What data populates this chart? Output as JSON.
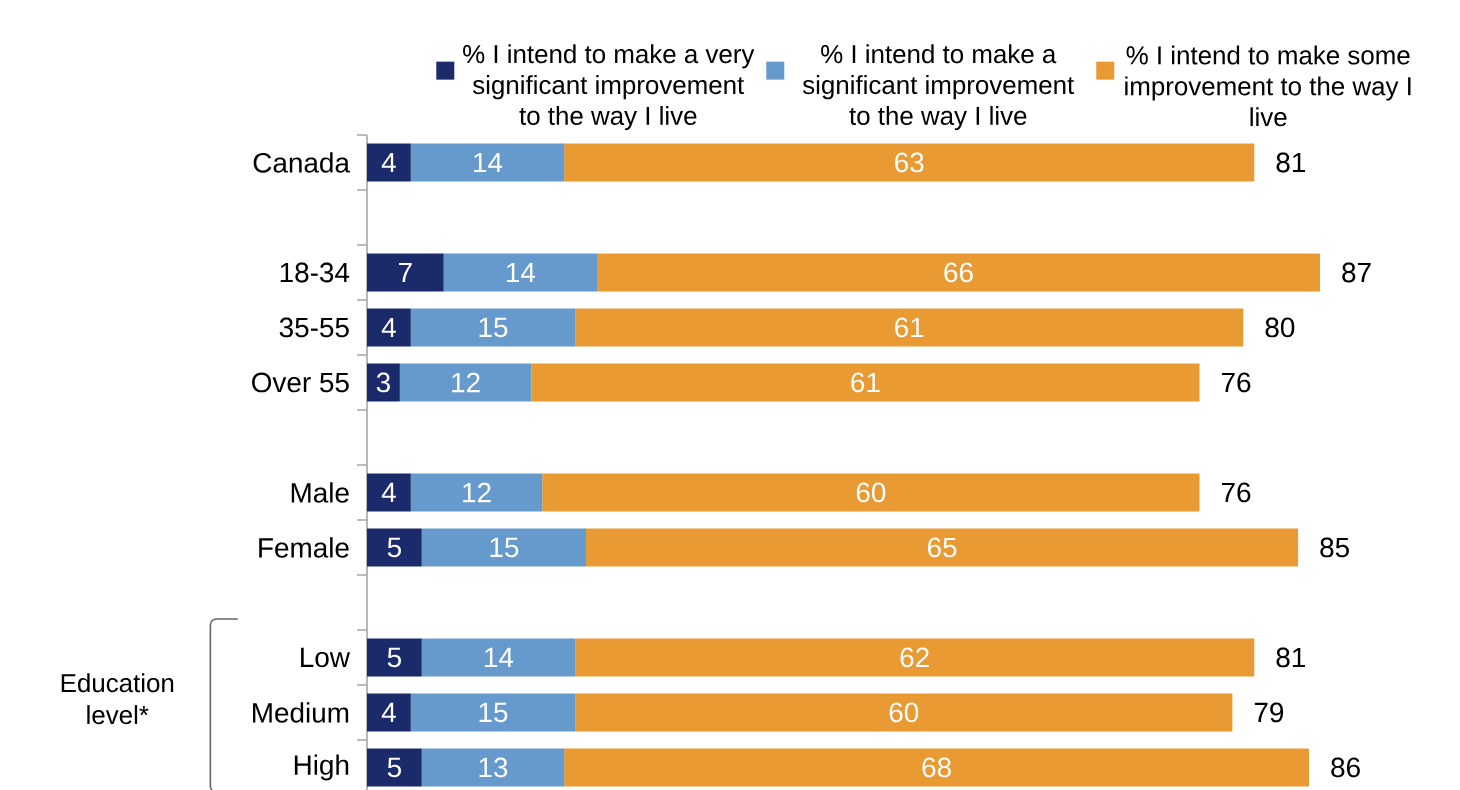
{
  "chart_data": {
    "type": "bar",
    "orientation": "horizontal",
    "stacked": true,
    "categories": [
      "Canada",
      null,
      "18-34",
      "35-55",
      "Over 55",
      null,
      "Male",
      "Female",
      null,
      "Low",
      "Medium",
      "High"
    ],
    "series": [
      {
        "name": "% I intend to make a very significant improvement to the way I live",
        "color": "#1b2a6b",
        "values": [
          4,
          null,
          7,
          4,
          3,
          null,
          4,
          5,
          null,
          5,
          4,
          5
        ]
      },
      {
        "name": "% I intend to make a significant improvement to the way I live",
        "color": "#6699cc",
        "values": [
          14,
          null,
          14,
          15,
          12,
          null,
          12,
          15,
          null,
          14,
          15,
          13
        ]
      },
      {
        "name": "% I intend to make some improvement to the way I live",
        "color": "#e99a33",
        "values": [
          63,
          null,
          66,
          61,
          61,
          null,
          60,
          65,
          null,
          62,
          60,
          68
        ]
      }
    ],
    "totals": [
      "81",
      null,
      "87",
      "80",
      "76",
      null,
      "76",
      "85",
      null,
      "81",
      "79",
      "86"
    ],
    "data_labels": true,
    "tick_labels": "y",
    "legend": "top",
    "annotations": [
      "Education level*"
    ]
  }
}
